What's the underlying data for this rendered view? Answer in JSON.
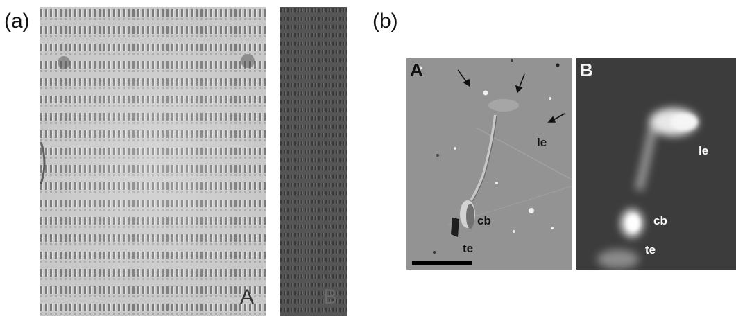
{
  "panel_a": {
    "label": "(a)",
    "image_a_letter": "A",
    "image_b_letter": "B"
  },
  "panel_b": {
    "label": "(b)",
    "image_a": {
      "letter": "A",
      "labels": {
        "le": "le",
        "cb": "cb",
        "te": "te"
      }
    },
    "image_b": {
      "letter": "B",
      "labels": {
        "le": "le",
        "cb": "cb",
        "te": "te"
      }
    }
  }
}
